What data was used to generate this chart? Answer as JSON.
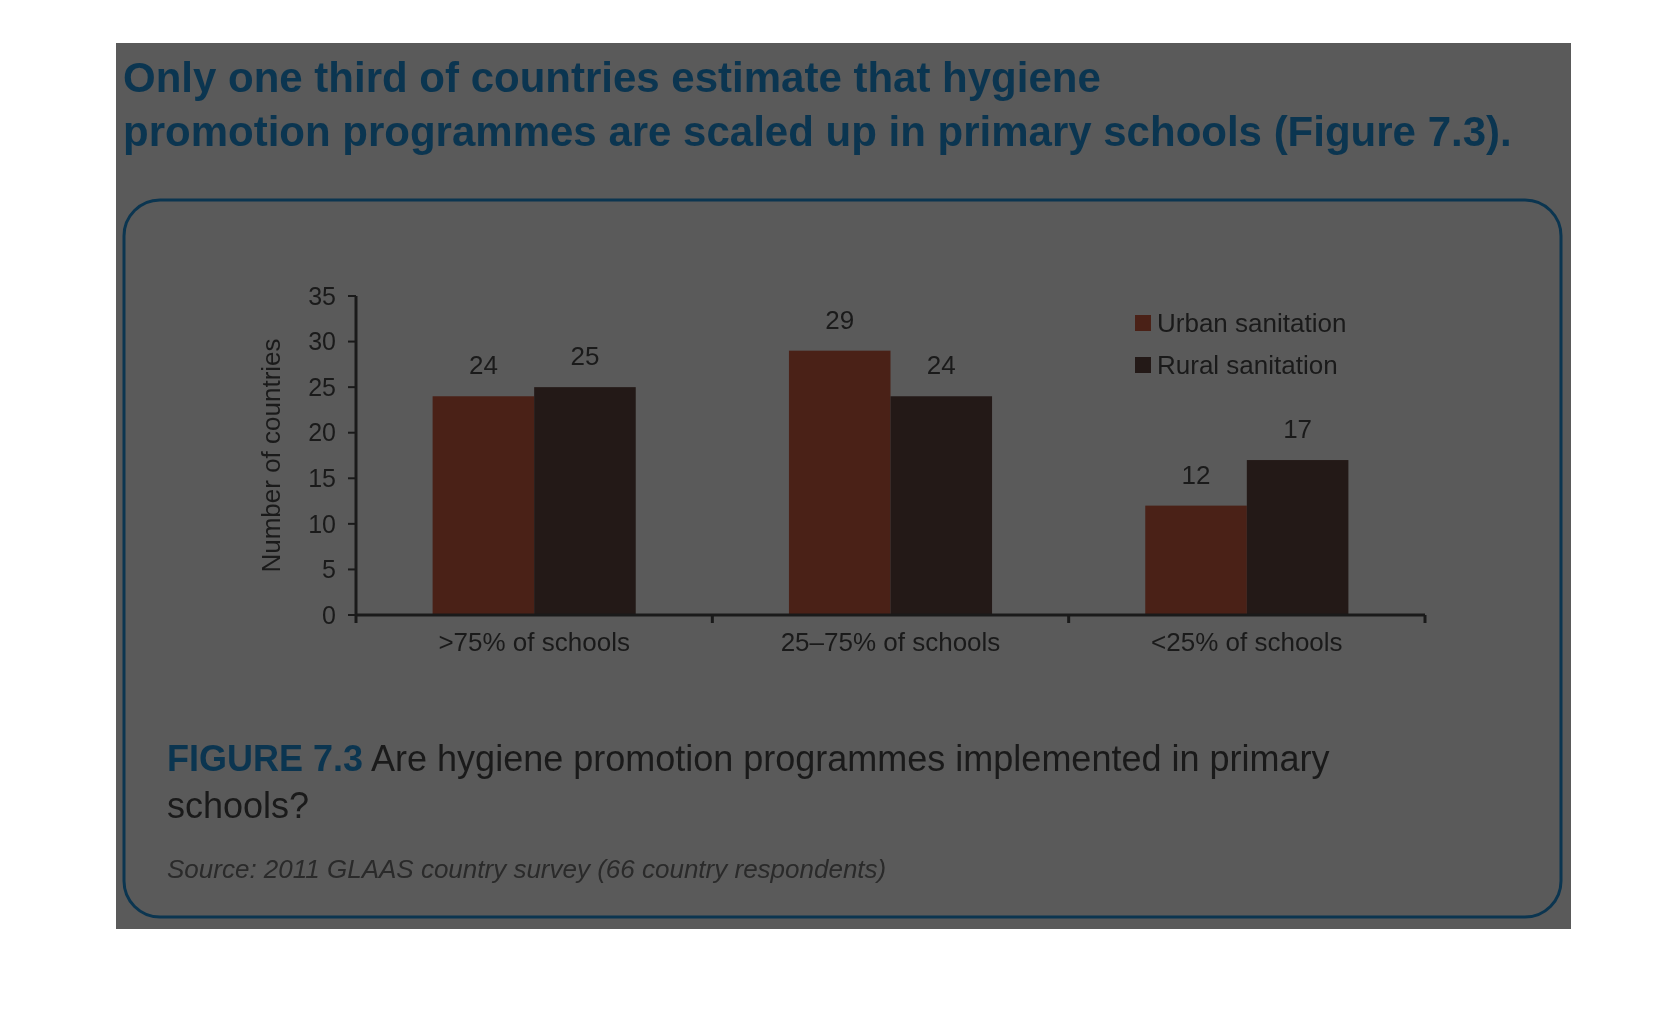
{
  "chart_data": {
    "type": "bar",
    "title": "Only one third of countries estimate that hygiene promotion programmes are scaled up in primary schools (Figure 7.3).",
    "ylabel": "Number of countries",
    "categories": [
      ">75% of schools",
      "25–75% of schools",
      "<25% of schools"
    ],
    "series": [
      {
        "name": "Urban sanitation",
        "color": "#4a2117",
        "values": [
          24,
          29,
          12
        ]
      },
      {
        "name": "Rural sanitation",
        "color": "#231917",
        "values": [
          25,
          24,
          17
        ]
      }
    ],
    "ylim": [
      0,
      35
    ],
    "yticks": [
      0,
      5,
      10,
      15,
      20,
      25,
      30,
      35
    ],
    "data_labels": true,
    "legend": "top right",
    "annotations": [
      "FIGURE 7.3",
      "Are hygiene promotion programmes implemented in primary schools?",
      "Source: 2011 GLAAS country survey (66 country respondents)"
    ]
  }
}
